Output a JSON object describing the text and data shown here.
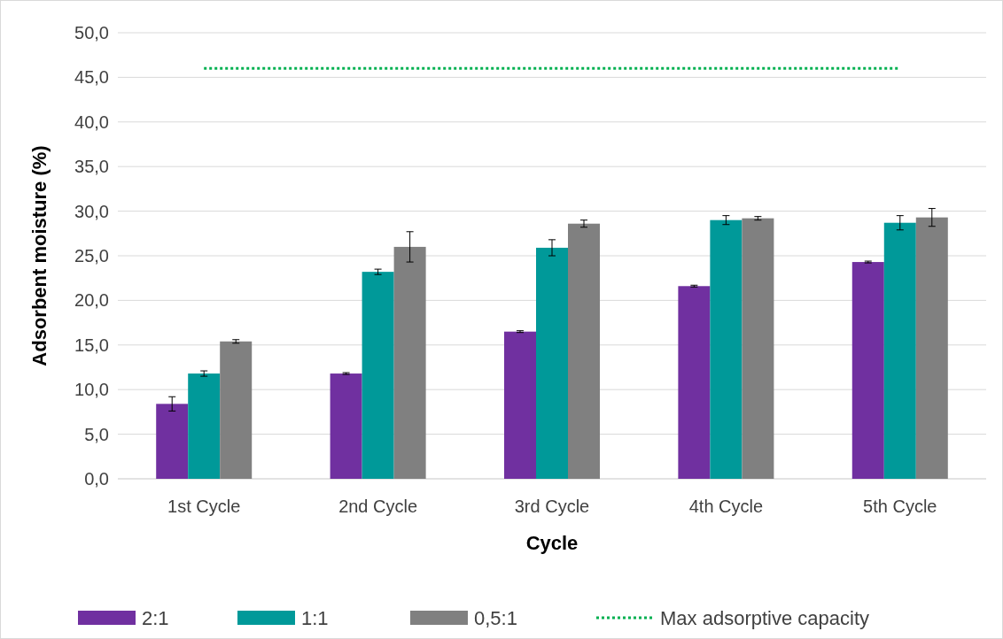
{
  "chart_data": {
    "type": "bar",
    "xlabel": "Cycle",
    "ylabel": "Adsorbent moisture (%)",
    "categories": [
      "1st Cycle",
      "2nd Cycle",
      "3rd Cycle",
      "4th Cycle",
      "5th Cycle"
    ],
    "series": [
      {
        "name": "2:1",
        "color": "#7030a0",
        "values": [
          8.4,
          11.8,
          16.5,
          21.6,
          24.3
        ],
        "errors": [
          0.8,
          0.1,
          0.1,
          0.1,
          0.1
        ]
      },
      {
        "name": "1:1",
        "color": "#009999",
        "values": [
          11.8,
          23.2,
          25.9,
          29.0,
          28.7
        ],
        "errors": [
          0.3,
          0.3,
          0.9,
          0.5,
          0.8
        ]
      },
      {
        "name": "0,5:1",
        "color": "#808080",
        "values": [
          15.4,
          26.0,
          28.6,
          29.2,
          29.3
        ],
        "errors": [
          0.2,
          1.7,
          0.4,
          0.2,
          1.0
        ]
      },
      {
        "name": "Max adsorptive capacity",
        "type": "line",
        "color": "#00b050",
        "line_style": "dotted",
        "marker": "none",
        "values": [
          46.0,
          46.0,
          46.0,
          46.0,
          46.0
        ]
      }
    ],
    "ylim": [
      0,
      50
    ],
    "yticks": [
      {
        "value": 0,
        "label": "0,0"
      },
      {
        "value": 5,
        "label": "5,0"
      },
      {
        "value": 10,
        "label": "10,0"
      },
      {
        "value": 15,
        "label": "15,0"
      },
      {
        "value": 20,
        "label": "20,0"
      },
      {
        "value": 25,
        "label": "25,0"
      },
      {
        "value": 30,
        "label": "30,0"
      },
      {
        "value": 35,
        "label": "35,0"
      },
      {
        "value": 40,
        "label": "40,0"
      },
      {
        "value": 45,
        "label": "45,0"
      },
      {
        "value": 50,
        "label": "50,0"
      }
    ],
    "grid": "y",
    "legend": "bottom"
  }
}
